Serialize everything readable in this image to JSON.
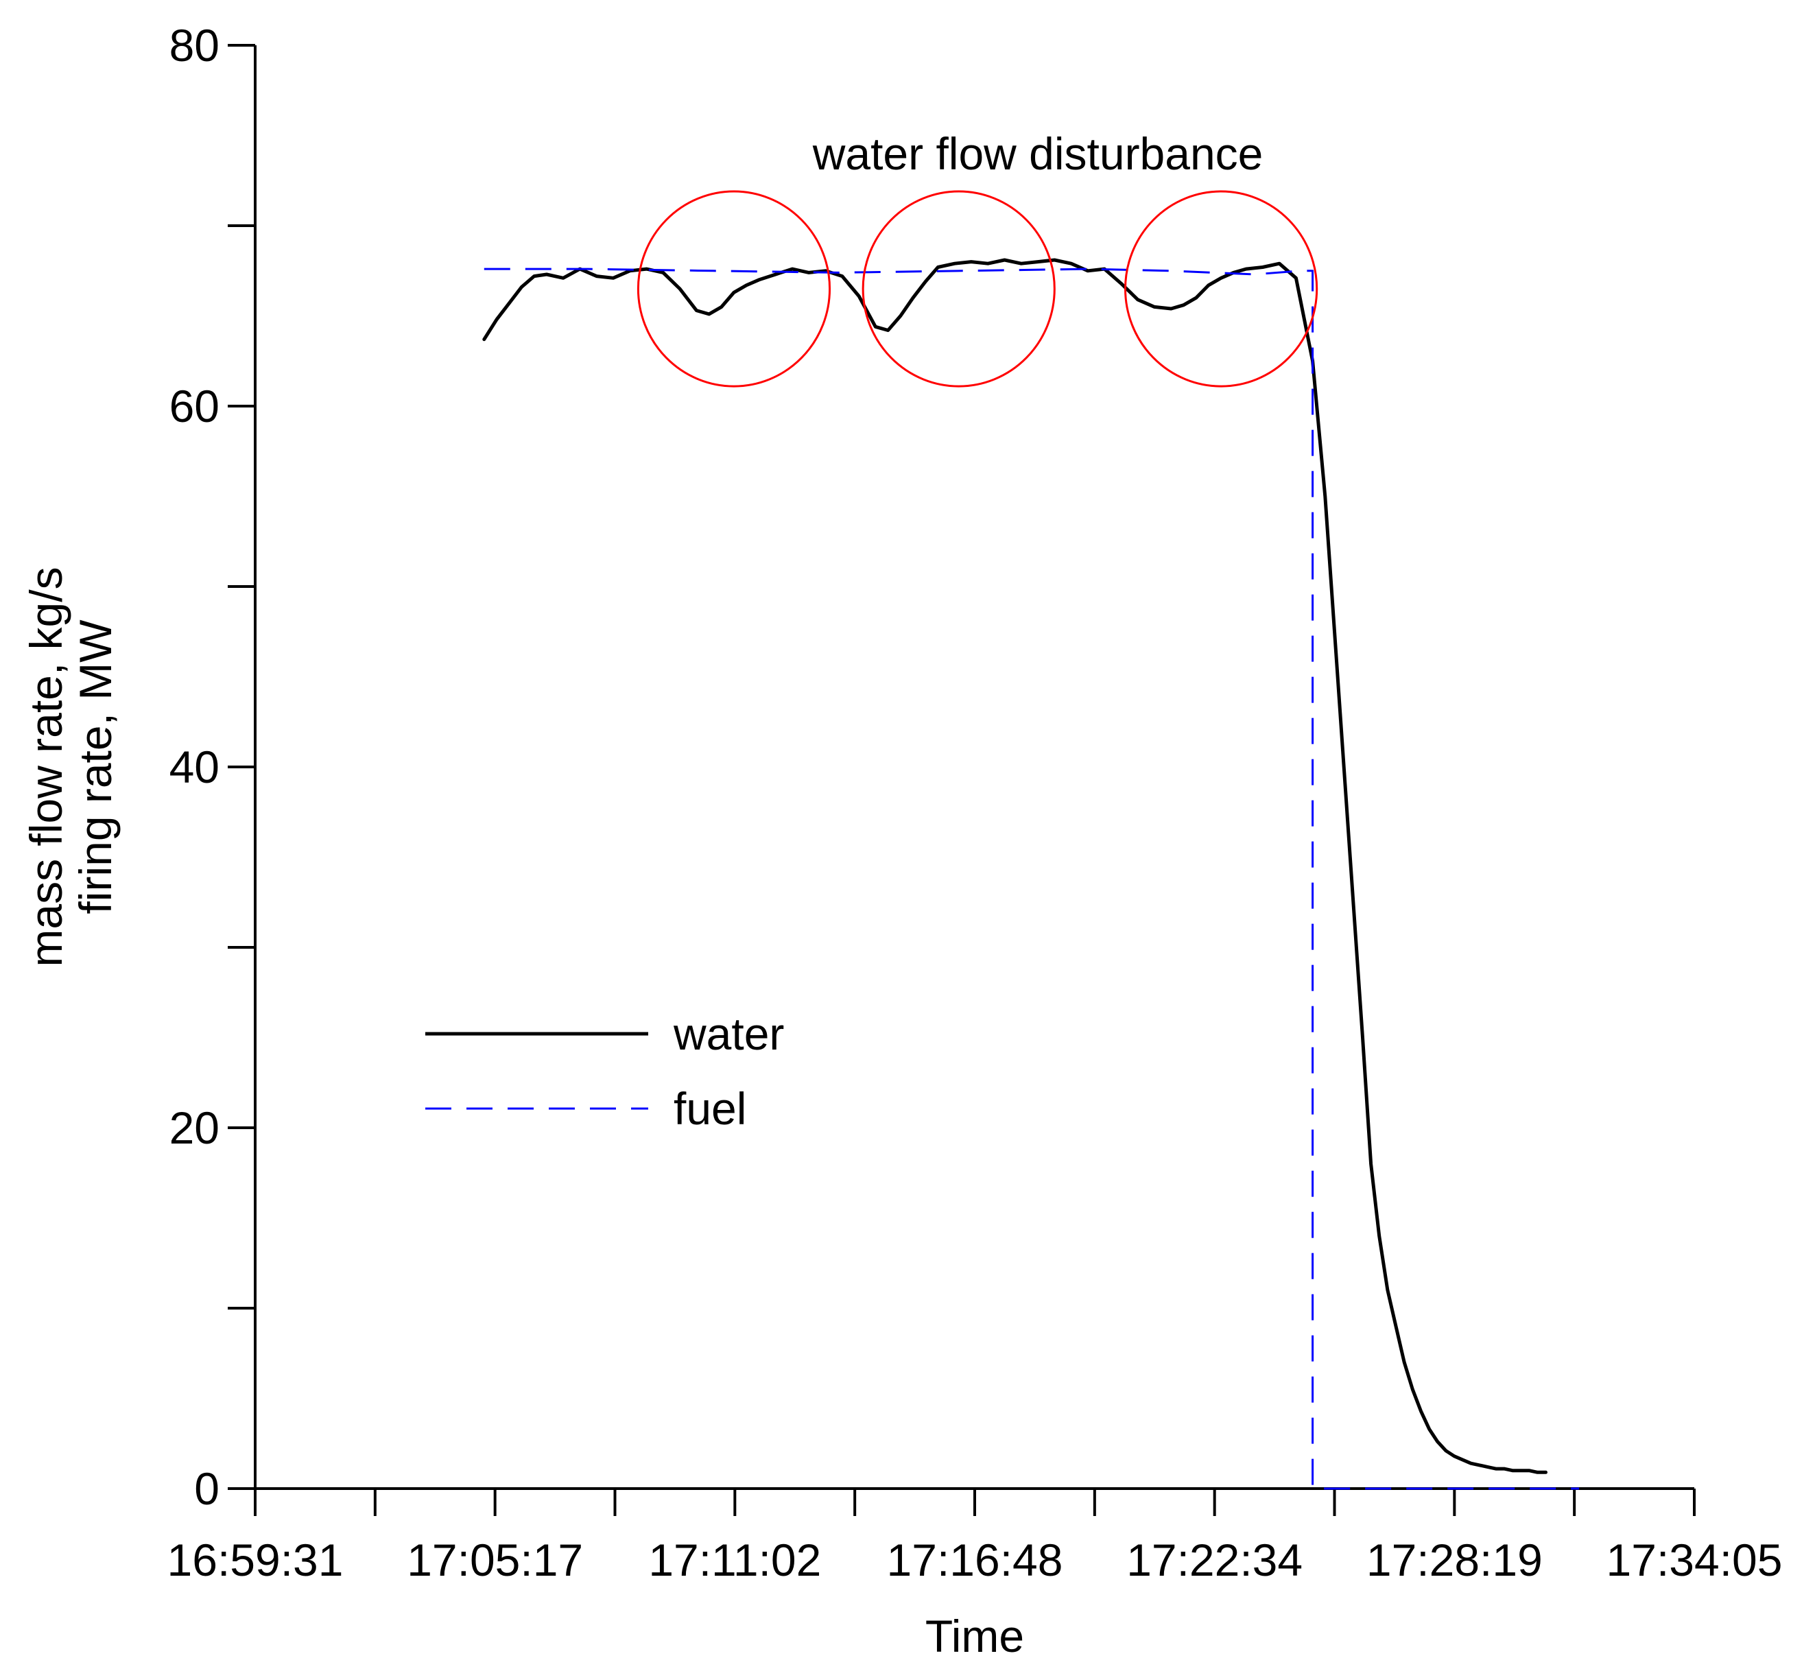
{
  "chart_data": {
    "type": "line",
    "title": "",
    "xlabel": "Time",
    "ylabel_lines": [
      "mass flow rate, kg/s",
      "firing rate, MW"
    ],
    "x_unit": "minutes after 16:59:31",
    "xlim": [
      0,
      34.5667
    ],
    "ylim": [
      0,
      80
    ],
    "x_ticks": [
      {
        "value": 0,
        "label": "16:59:31"
      },
      {
        "value": 5.7611,
        "label": "17:05:17"
      },
      {
        "value": 11.5222,
        "label": "17:11:02"
      },
      {
        "value": 17.2833,
        "label": "17:16:48"
      },
      {
        "value": 23.0444,
        "label": "17:22:34"
      },
      {
        "value": 28.8056,
        "label": "17:28:19"
      },
      {
        "value": 34.5667,
        "label": "17:34:05"
      }
    ],
    "x_minor_ticks": [
      2.8806,
      8.6417,
      14.4028,
      20.1639,
      25.925,
      31.6861
    ],
    "y_ticks": [
      {
        "value": 0,
        "label": "0"
      },
      {
        "value": 20,
        "label": "20"
      },
      {
        "value": 40,
        "label": "40"
      },
      {
        "value": 60,
        "label": "60"
      },
      {
        "value": 80,
        "label": "80"
      }
    ],
    "y_minor_ticks": [
      10,
      30,
      50,
      70
    ],
    "grid": false,
    "legend_position": "left-middle",
    "series": [
      {
        "name": "water",
        "color": "#000000",
        "style": "solid",
        "x": [
          5.5,
          5.8,
          6.1,
          6.4,
          6.7,
          7.0,
          7.4,
          7.8,
          8.2,
          8.6,
          9.0,
          9.4,
          9.8,
          10.2,
          10.6,
          10.9,
          11.2,
          11.5,
          11.8,
          12.1,
          12.5,
          12.9,
          13.3,
          13.7,
          14.1,
          14.5,
          14.9,
          15.2,
          15.5,
          15.8,
          16.1,
          16.4,
          16.8,
          17.2,
          17.6,
          18.0,
          18.4,
          18.8,
          19.2,
          19.6,
          20.0,
          20.4,
          20.8,
          21.2,
          21.6,
          22.0,
          22.3,
          22.6,
          22.9,
          23.2,
          23.5,
          23.8,
          24.2,
          24.6,
          25.0,
          25.4,
          25.7,
          26.0,
          26.3,
          26.6,
          26.8,
          27.0,
          27.2,
          27.4,
          27.6,
          27.8,
          28.0,
          28.2,
          28.4,
          28.6,
          28.8,
          29.0,
          29.2,
          29.4,
          29.6,
          29.8,
          30.0,
          30.2,
          30.4,
          30.6,
          30.8,
          31.0
        ],
        "values": [
          63.7,
          64.8,
          65.7,
          66.6,
          67.2,
          67.3,
          67.1,
          67.6,
          67.2,
          67.1,
          67.5,
          67.6,
          67.4,
          66.5,
          65.3,
          65.1,
          65.5,
          66.3,
          66.7,
          67.0,
          67.3,
          67.6,
          67.4,
          67.5,
          67.2,
          66.1,
          64.4,
          64.2,
          65.0,
          66.0,
          66.9,
          67.7,
          67.9,
          68.0,
          67.9,
          68.1,
          67.9,
          68.0,
          68.1,
          67.9,
          67.5,
          67.6,
          66.8,
          65.9,
          65.5,
          65.4,
          65.6,
          66.0,
          66.7,
          67.1,
          67.4,
          67.6,
          67.7,
          67.9,
          67.1,
          62.5,
          55.0,
          45.0,
          35.0,
          25.0,
          18.0,
          14.0,
          11.0,
          9.0,
          7.0,
          5.5,
          4.3,
          3.3,
          2.6,
          2.1,
          1.8,
          1.6,
          1.4,
          1.3,
          1.2,
          1.1,
          1.1,
          1.0,
          1.0,
          1.0,
          0.9,
          0.9
        ]
      },
      {
        "name": "fuel",
        "color": "#0000FF",
        "style": "dashed",
        "x": [
          5.5,
          8.0,
          11.0,
          14.0,
          17.0,
          20.0,
          22.0,
          24.0,
          25.1,
          25.4,
          25.4,
          31.8
        ],
        "values": [
          67.6,
          67.6,
          67.5,
          67.4,
          67.5,
          67.6,
          67.5,
          67.3,
          67.5,
          67.5,
          0.0,
          0.0
        ]
      }
    ],
    "annotations": [
      {
        "text": "water flow disturbance",
        "x": 18.8,
        "y": 74.0
      }
    ],
    "highlight_circles": [
      {
        "cx": 11.5,
        "cy": 66.5,
        "rx": 2.3,
        "ry": 5.4
      },
      {
        "cx": 16.9,
        "cy": 66.5,
        "rx": 2.3,
        "ry": 5.4
      },
      {
        "cx": 23.2,
        "cy": 66.5,
        "rx": 2.3,
        "ry": 5.4
      }
    ],
    "highlight_color": "#FF0000"
  }
}
